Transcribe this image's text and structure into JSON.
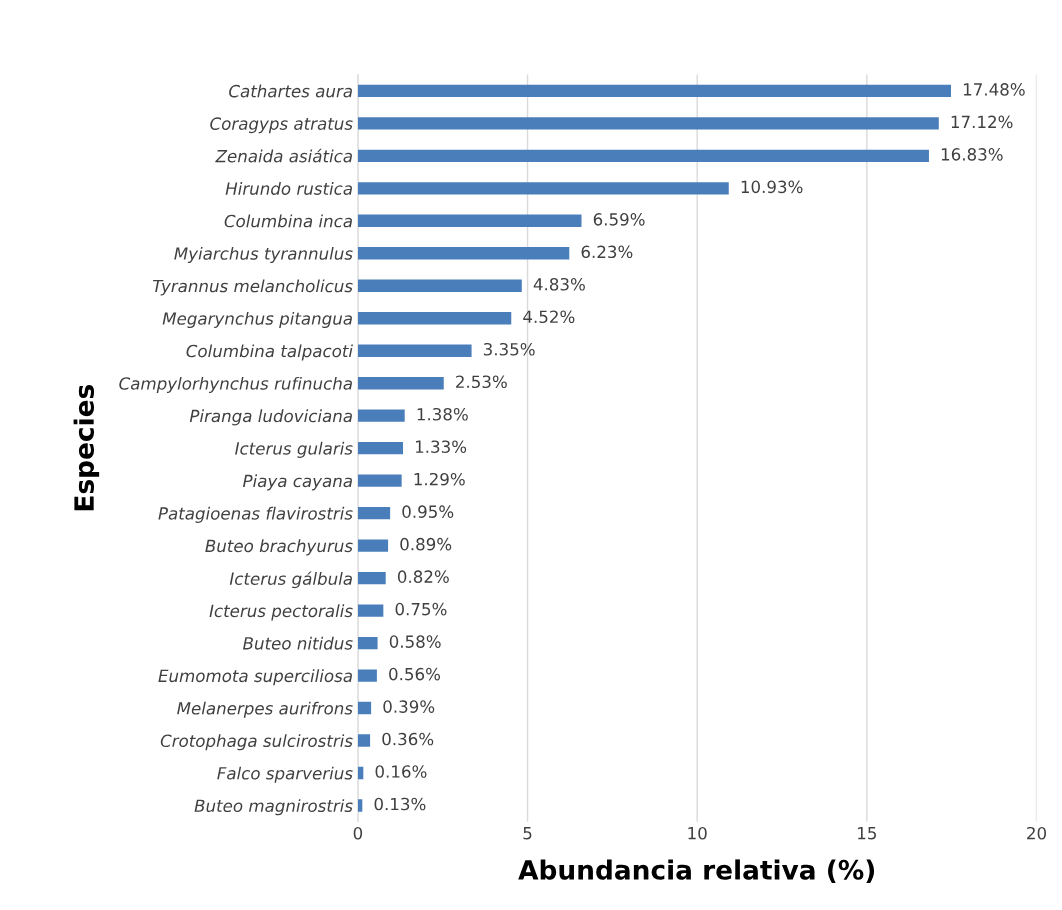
{
  "chart_data": {
    "type": "bar",
    "orientation": "horizontal",
    "xlabel": "Abundancia relativa (%)",
    "ylabel": "Especies",
    "categories": [
      "Cathartes aura",
      "Coragyps atratus",
      "Zenaida asiática",
      "Hirundo rustica",
      "Columbina inca",
      "Myiarchus tyrannulus",
      "Tyrannus melancholicus",
      "Megarynchus pitangua",
      "Columbina talpacoti",
      "Campylorhynchus rufinucha",
      "Piranga ludoviciana",
      "Icterus gularis",
      "Piaya cayana",
      "Patagioenas flavirostris",
      "Buteo brachyurus",
      "Icterus gálbula",
      "Icterus pectoralis",
      "Buteo nitidus",
      "Eumomota superciliosa",
      "Melanerpes aurifrons",
      "Crotophaga sulcirostris",
      "Falco sparverius",
      "Buteo magnirostris"
    ],
    "values": [
      17.48,
      17.12,
      16.83,
      10.93,
      6.59,
      6.23,
      4.83,
      4.52,
      3.35,
      2.53,
      1.38,
      1.33,
      1.29,
      0.95,
      0.89,
      0.82,
      0.75,
      0.58,
      0.56,
      0.39,
      0.36,
      0.16,
      0.13
    ],
    "value_labels": [
      "17.48%",
      "17.12%",
      "16.83%",
      "10.93%",
      "6.59%",
      "6.23%",
      "4.83%",
      "4.52%",
      "3.35%",
      "2.53%",
      "1.38%",
      "1.33%",
      "1.29%",
      "0.95%",
      "0.89%",
      "0.82%",
      "0.75%",
      "0.58%",
      "0.56%",
      "0.39%",
      "0.36%",
      "0.16%",
      "0.13%"
    ],
    "color": "#4a7ebb",
    "xlim": [
      0,
      20
    ],
    "xticks": [
      0,
      5,
      10,
      15,
      20
    ],
    "grid": "x"
  }
}
